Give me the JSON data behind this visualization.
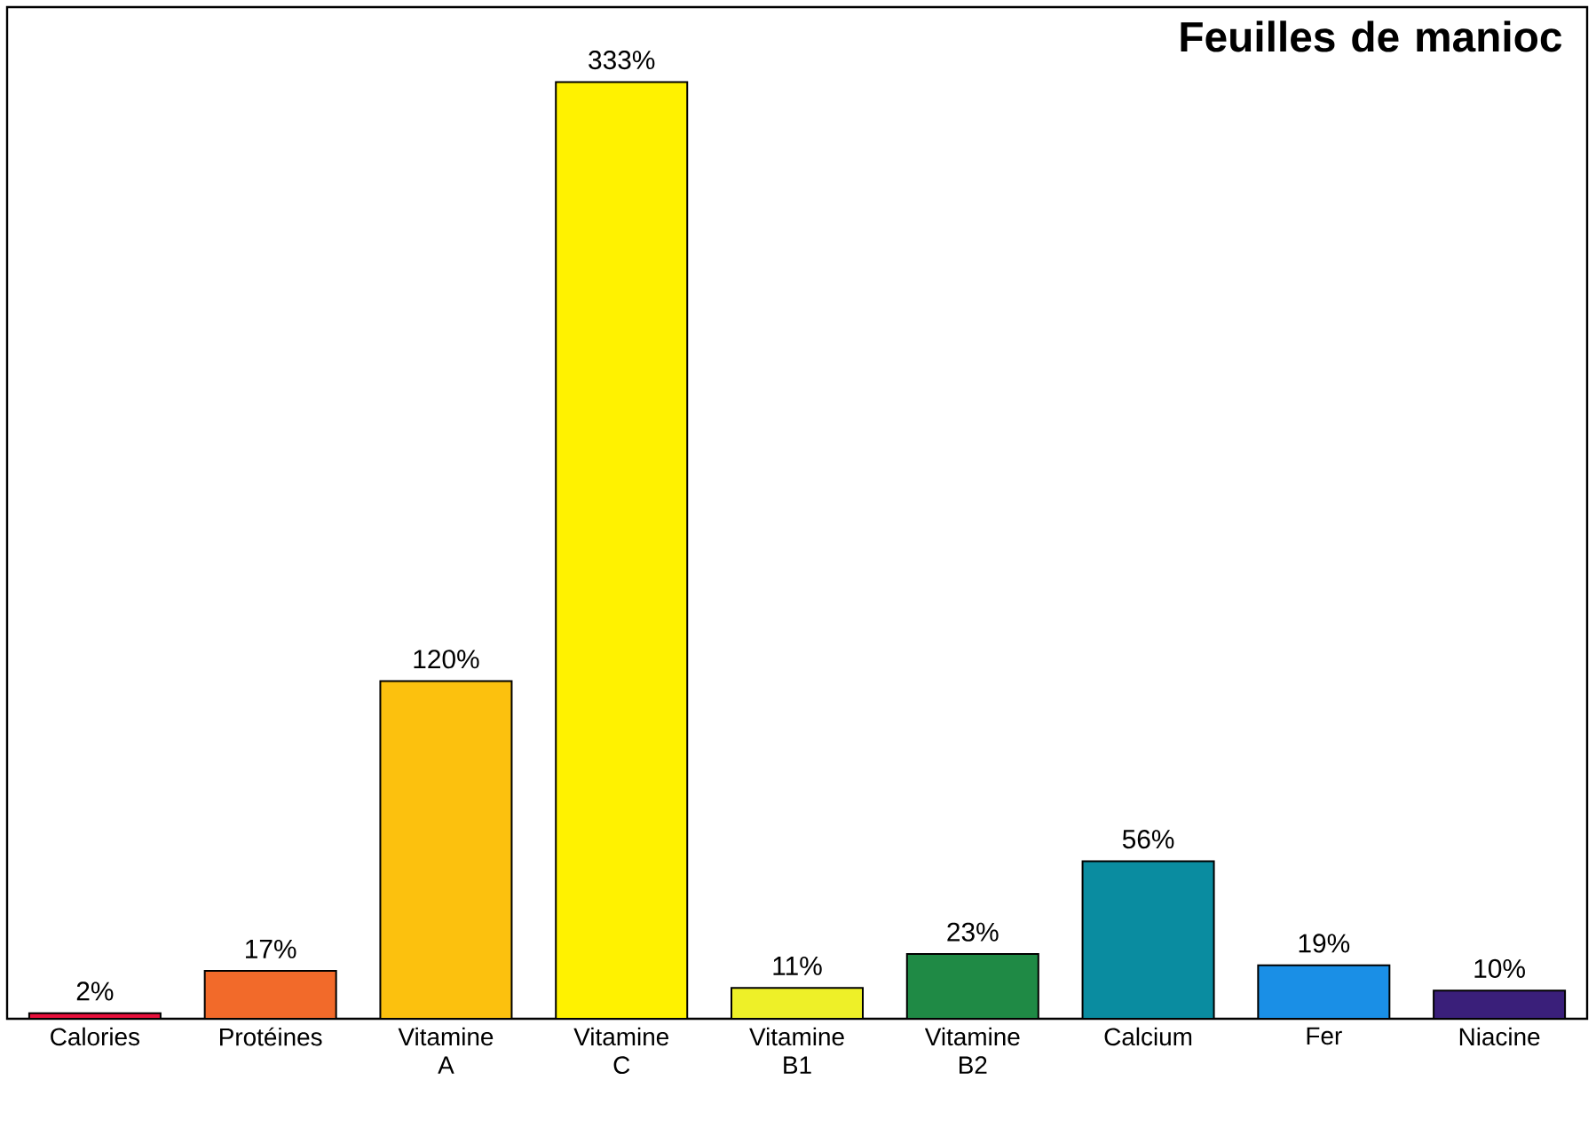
{
  "chart_data": {
    "type": "bar",
    "title": "Feuilles de manioc",
    "categories": [
      "Calories",
      "Protéines",
      "Vitamine A",
      "Vitamine C",
      "Vitamine B1",
      "Vitamine B2",
      "Calcium",
      "Fer",
      "Niacine"
    ],
    "values": [
      2,
      17,
      120,
      333,
      11,
      23,
      56,
      19,
      10
    ],
    "value_labels": [
      "2%",
      "17%",
      "120%",
      "333%",
      "11%",
      "23%",
      "56%",
      "19%",
      "10%"
    ],
    "colors": [
      "#e8103c",
      "#f26a2a",
      "#fcc10e",
      "#fff200",
      "#eef028",
      "#1f8a45",
      "#0a8ca0",
      "#1a8fe6",
      "#3a1f7a"
    ],
    "tick_labels": "x",
    "grid": false
  }
}
